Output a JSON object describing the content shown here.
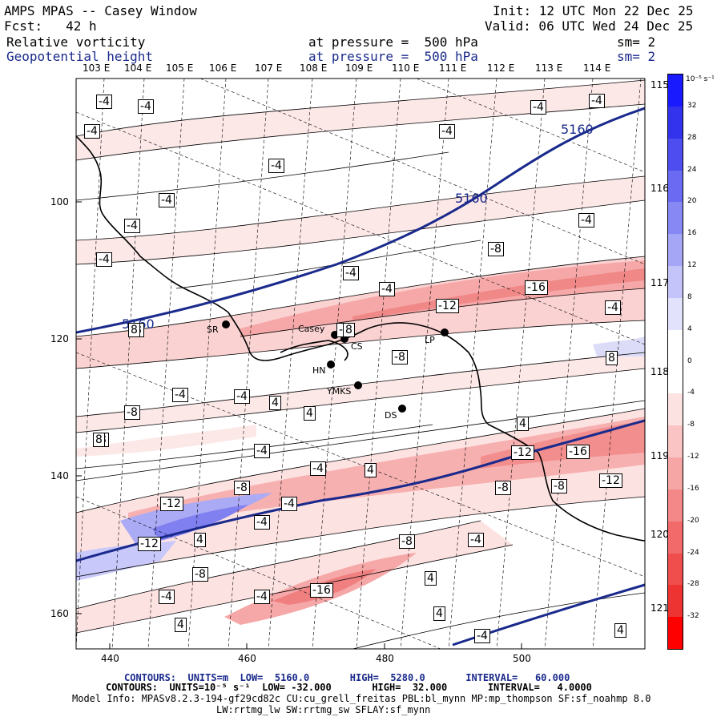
{
  "header": {
    "title": "AMPS MPAS -- Casey Window",
    "fcst": "Fcst:   42 h",
    "init": "Init: 12 UTC Mon 22 Dec 25",
    "valid": "Valid: 06 UTC Wed 24 Dec 25",
    "field1": {
      "name": "Relative vorticity",
      "level": "at pressure =  500 hPa",
      "sm": "sm= 2"
    },
    "field2": {
      "name": "Geopotential height",
      "level": "at pressure =  500 hPa",
      "sm": "sm= 2"
    }
  },
  "map": {
    "lon_labels": [
      "103 E",
      "104 E",
      "105 E",
      "106 E",
      "107 E",
      "108 E",
      "109 E",
      "110 E",
      "111 E",
      "112 E",
      "113 E",
      "114 E"
    ],
    "right_labels": [
      "115 E",
      "116 E",
      "117 E",
      "118 E",
      "119 E",
      "120 E",
      "121 E"
    ],
    "y_ticks": [
      "100",
      "120",
      "140",
      "160"
    ],
    "x_ticks": [
      "440",
      "460",
      "480",
      "500"
    ],
    "height_labels": [
      "5160",
      "5160",
      "5160"
    ],
    "vort_labels": [
      "-4",
      "-4",
      "-4",
      "-4",
      "-4",
      "-4",
      "-4",
      "-4",
      "-4",
      "-4",
      "-4",
      "-4",
      "-4",
      "-4",
      "-4",
      "-4",
      "-4",
      "-4",
      "-4",
      "-4",
      "-4",
      "-4",
      "-4",
      "-4",
      "-8",
      "-8",
      "-8",
      "-8",
      "-8",
      "-8",
      "-8",
      "-8",
      "-8",
      "-8",
      "-8",
      "-12",
      "-12",
      "-12",
      "-12",
      "-12",
      "-16",
      "-16",
      "-16",
      "4",
      "4",
      "4",
      "4",
      "4",
      "4",
      "4",
      "4",
      "4",
      "8",
      "8",
      "8",
      "8"
    ],
    "stations": [
      "SR",
      "Casey",
      "CS",
      "HN",
      "YMKS",
      "DS",
      "LP"
    ]
  },
  "colorbar": {
    "units": "10⁻⁵ s⁻¹",
    "ticks": [
      "32",
      "28",
      "24",
      "20",
      "16",
      "12",
      "8",
      "4",
      "0",
      "-4",
      "-8",
      "-12",
      "-16",
      "-20",
      "-24",
      "-28",
      "-32"
    ],
    "colors": [
      "#1a1aff",
      "#3333ee",
      "#4d4df0",
      "#6a6af2",
      "#8888f4",
      "#a6a6f7",
      "#c4c4fa",
      "#e2e2fd",
      "#ffffff",
      "#ffffff",
      "#fde2e2",
      "#fac4c4",
      "#f7a6a6",
      "#f48888",
      "#f26a6a",
      "#f04d4d",
      "#ee3333",
      "#ff0000"
    ]
  },
  "footer": {
    "line1": "CONTOURS:  UNITS=m  LOW=  5160.0       HIGH=  5280.0       INTERVAL=   60.000",
    "line2": "CONTOURS:  UNITS=10⁻⁵ s⁻¹  LOW= -32.000       HIGH=  32.000       INTERVAL=   4.0000",
    "line3": "Model Info: MPASv8.2.3-194-gf29cd82c CU:cu_grell_freitas PBL:bl_mynn MP:mp_thompson SF:sf_noahmp 8.0",
    "line4": "LW:rrtmg_lw SW:rrtmg_sw SFLAY:sf_mynn"
  }
}
